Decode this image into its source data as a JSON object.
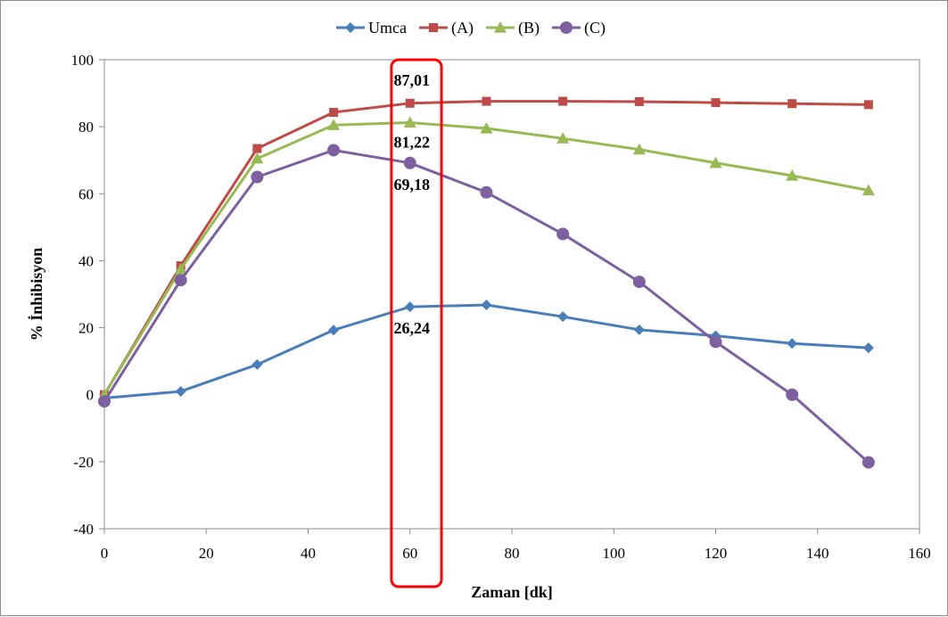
{
  "chart_data": {
    "type": "line",
    "xlabel": "Zaman [dk]",
    "ylabel": "% İnhibisyon",
    "xlim": [
      0,
      160
    ],
    "ylim": [
      -40,
      100
    ],
    "x_ticks": [
      0,
      20,
      40,
      60,
      80,
      100,
      120,
      140,
      160
    ],
    "y_ticks": [
      -40,
      -20,
      0,
      20,
      40,
      60,
      80,
      100
    ],
    "grid": false,
    "legend_position": "top-center",
    "x": [
      0,
      15,
      30,
      45,
      60,
      75,
      90,
      105,
      120,
      135,
      150
    ],
    "series": [
      {
        "name": "Umca",
        "color": "#4a7ebb",
        "marker": "diamond",
        "values": [
          -1,
          1,
          9,
          19.3,
          26.24,
          26.8,
          23.3,
          19.4,
          17.6,
          15.3,
          14
        ]
      },
      {
        "name": "(A)",
        "color": "#be4b48",
        "marker": "square",
        "values": [
          0,
          38.5,
          73.5,
          84.3,
          87.01,
          87.6,
          87.6,
          87.5,
          87.2,
          86.9,
          86.6
        ]
      },
      {
        "name": "(B)",
        "color": "#98b954",
        "marker": "triangle",
        "values": [
          0,
          37.5,
          70.5,
          80.5,
          81.22,
          79.5,
          76.5,
          73.2,
          69.2,
          65.4,
          61
        ]
      },
      {
        "name": "(C)",
        "color": "#7d60a0",
        "marker": "circle",
        "values": [
          -2,
          34.2,
          65,
          73,
          69.18,
          60.4,
          48,
          33.7,
          15.8,
          0,
          -20.2
        ]
      }
    ],
    "annotations": [
      {
        "x": 60,
        "y": 87.01,
        "text": "87,01"
      },
      {
        "x": 60,
        "y": 81.22,
        "text": "81,22"
      },
      {
        "x": 60,
        "y": 69.18,
        "text": "69,18"
      },
      {
        "x": 60,
        "y": 26.24,
        "text": "26,24"
      }
    ],
    "highlight": {
      "x_from": 56,
      "x_to": 66,
      "color": "#ff0000"
    }
  }
}
